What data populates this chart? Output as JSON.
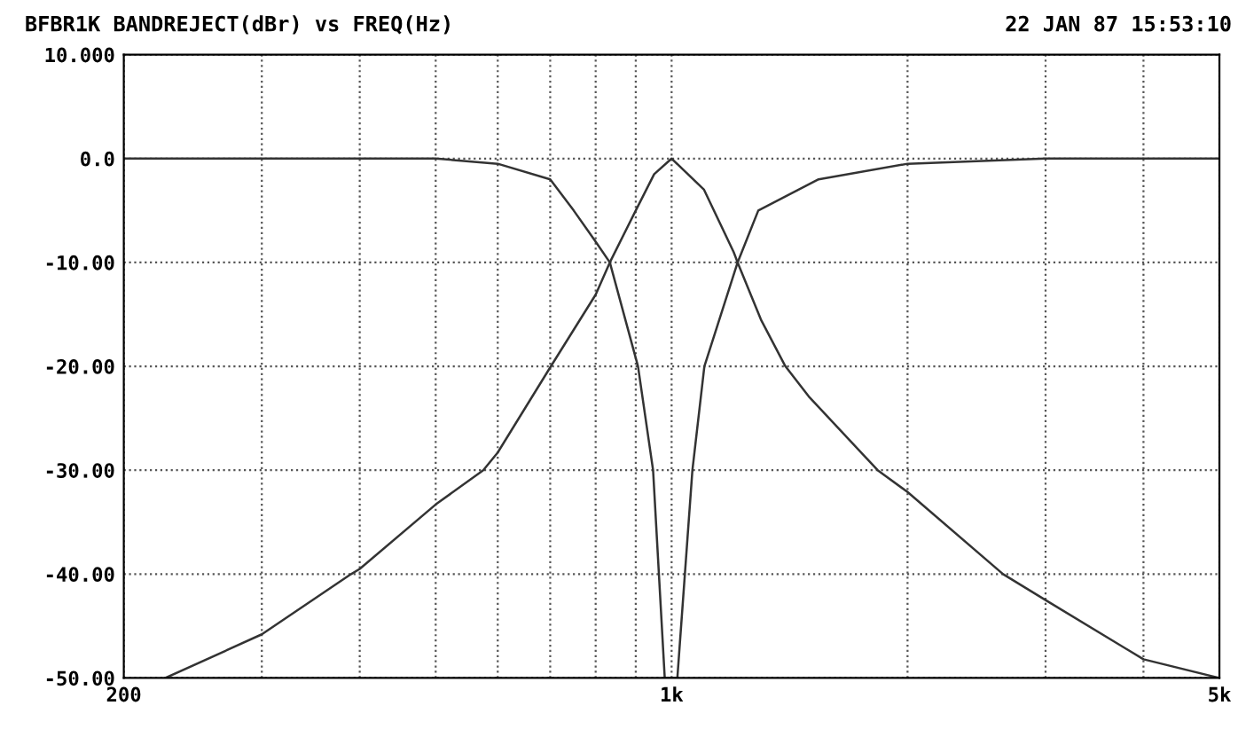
{
  "chart_data": {
    "type": "line",
    "title": "BFBR1K BANDREJECT(dBr) vs FREQ(Hz)",
    "annotations": [
      "22 JAN 87 15:53:10"
    ],
    "log": "x",
    "grid": true,
    "legend": false,
    "marker": "none",
    "line_style": "solid",
    "xlim": [
      200,
      5000
    ],
    "xticks": [
      {
        "value": 200,
        "label": "200"
      },
      {
        "value": 300,
        "label": null
      },
      {
        "value": 400,
        "label": null
      },
      {
        "value": 500,
        "label": null
      },
      {
        "value": 600,
        "label": null
      },
      {
        "value": 700,
        "label": null
      },
      {
        "value": 800,
        "label": null
      },
      {
        "value": 900,
        "label": null
      },
      {
        "value": 1000,
        "label": "1k"
      },
      {
        "value": 2000,
        "label": null
      },
      {
        "value": 3000,
        "label": null
      },
      {
        "value": 4000,
        "label": null
      },
      {
        "value": 5000,
        "label": "5k"
      }
    ],
    "ylim": [
      -50,
      10
    ],
    "yticks": [
      {
        "value": 10,
        "label": "10.000"
      },
      {
        "value": 0,
        "label": "0.0"
      },
      {
        "value": -10,
        "label": "-10.00"
      },
      {
        "value": -20,
        "label": "-20.00"
      },
      {
        "value": -30,
        "label": "-30.00"
      },
      {
        "value": -40,
        "label": "-40.00"
      },
      {
        "value": -50,
        "label": "-50.00"
      }
    ],
    "series": [
      {
        "color": "#333333",
        "x": [
          226,
          300,
          390,
          400,
          500,
          575,
          600,
          700,
          800,
          834,
          900,
          950,
          1000,
          1100,
          1200,
          1214,
          1300,
          1397,
          1500,
          1832,
          2000,
          2648,
          3000,
          4000,
          5000
        ],
        "values": [
          -50,
          -45.8,
          -40,
          -39.5,
          -33.3,
          -30,
          -28.3,
          -20.1,
          -13.1,
          -10,
          -5,
          -1.5,
          0,
          -3,
          -9,
          -10,
          -15.5,
          -20,
          -23,
          -30,
          -32.1,
          -40,
          -42.5,
          -48.2,
          -50
        ]
      },
      {
        "color": "#333333",
        "x": [
          200,
          300,
          400,
          500,
          600,
          700,
          750,
          800,
          834,
          906,
          947,
          980,
          1000,
          1017,
          1063,
          1101,
          1214,
          1290,
          1540,
          2000,
          3000,
          4000,
          5000
        ],
        "values": [
          0,
          0,
          0,
          0,
          -0.5,
          -2,
          -5,
          -8,
          -10,
          -20,
          -30,
          -50,
          -50,
          -50,
          -30,
          -20,
          -10,
          -5,
          -2,
          -0.5,
          0,
          0,
          0
        ]
      }
    ]
  }
}
